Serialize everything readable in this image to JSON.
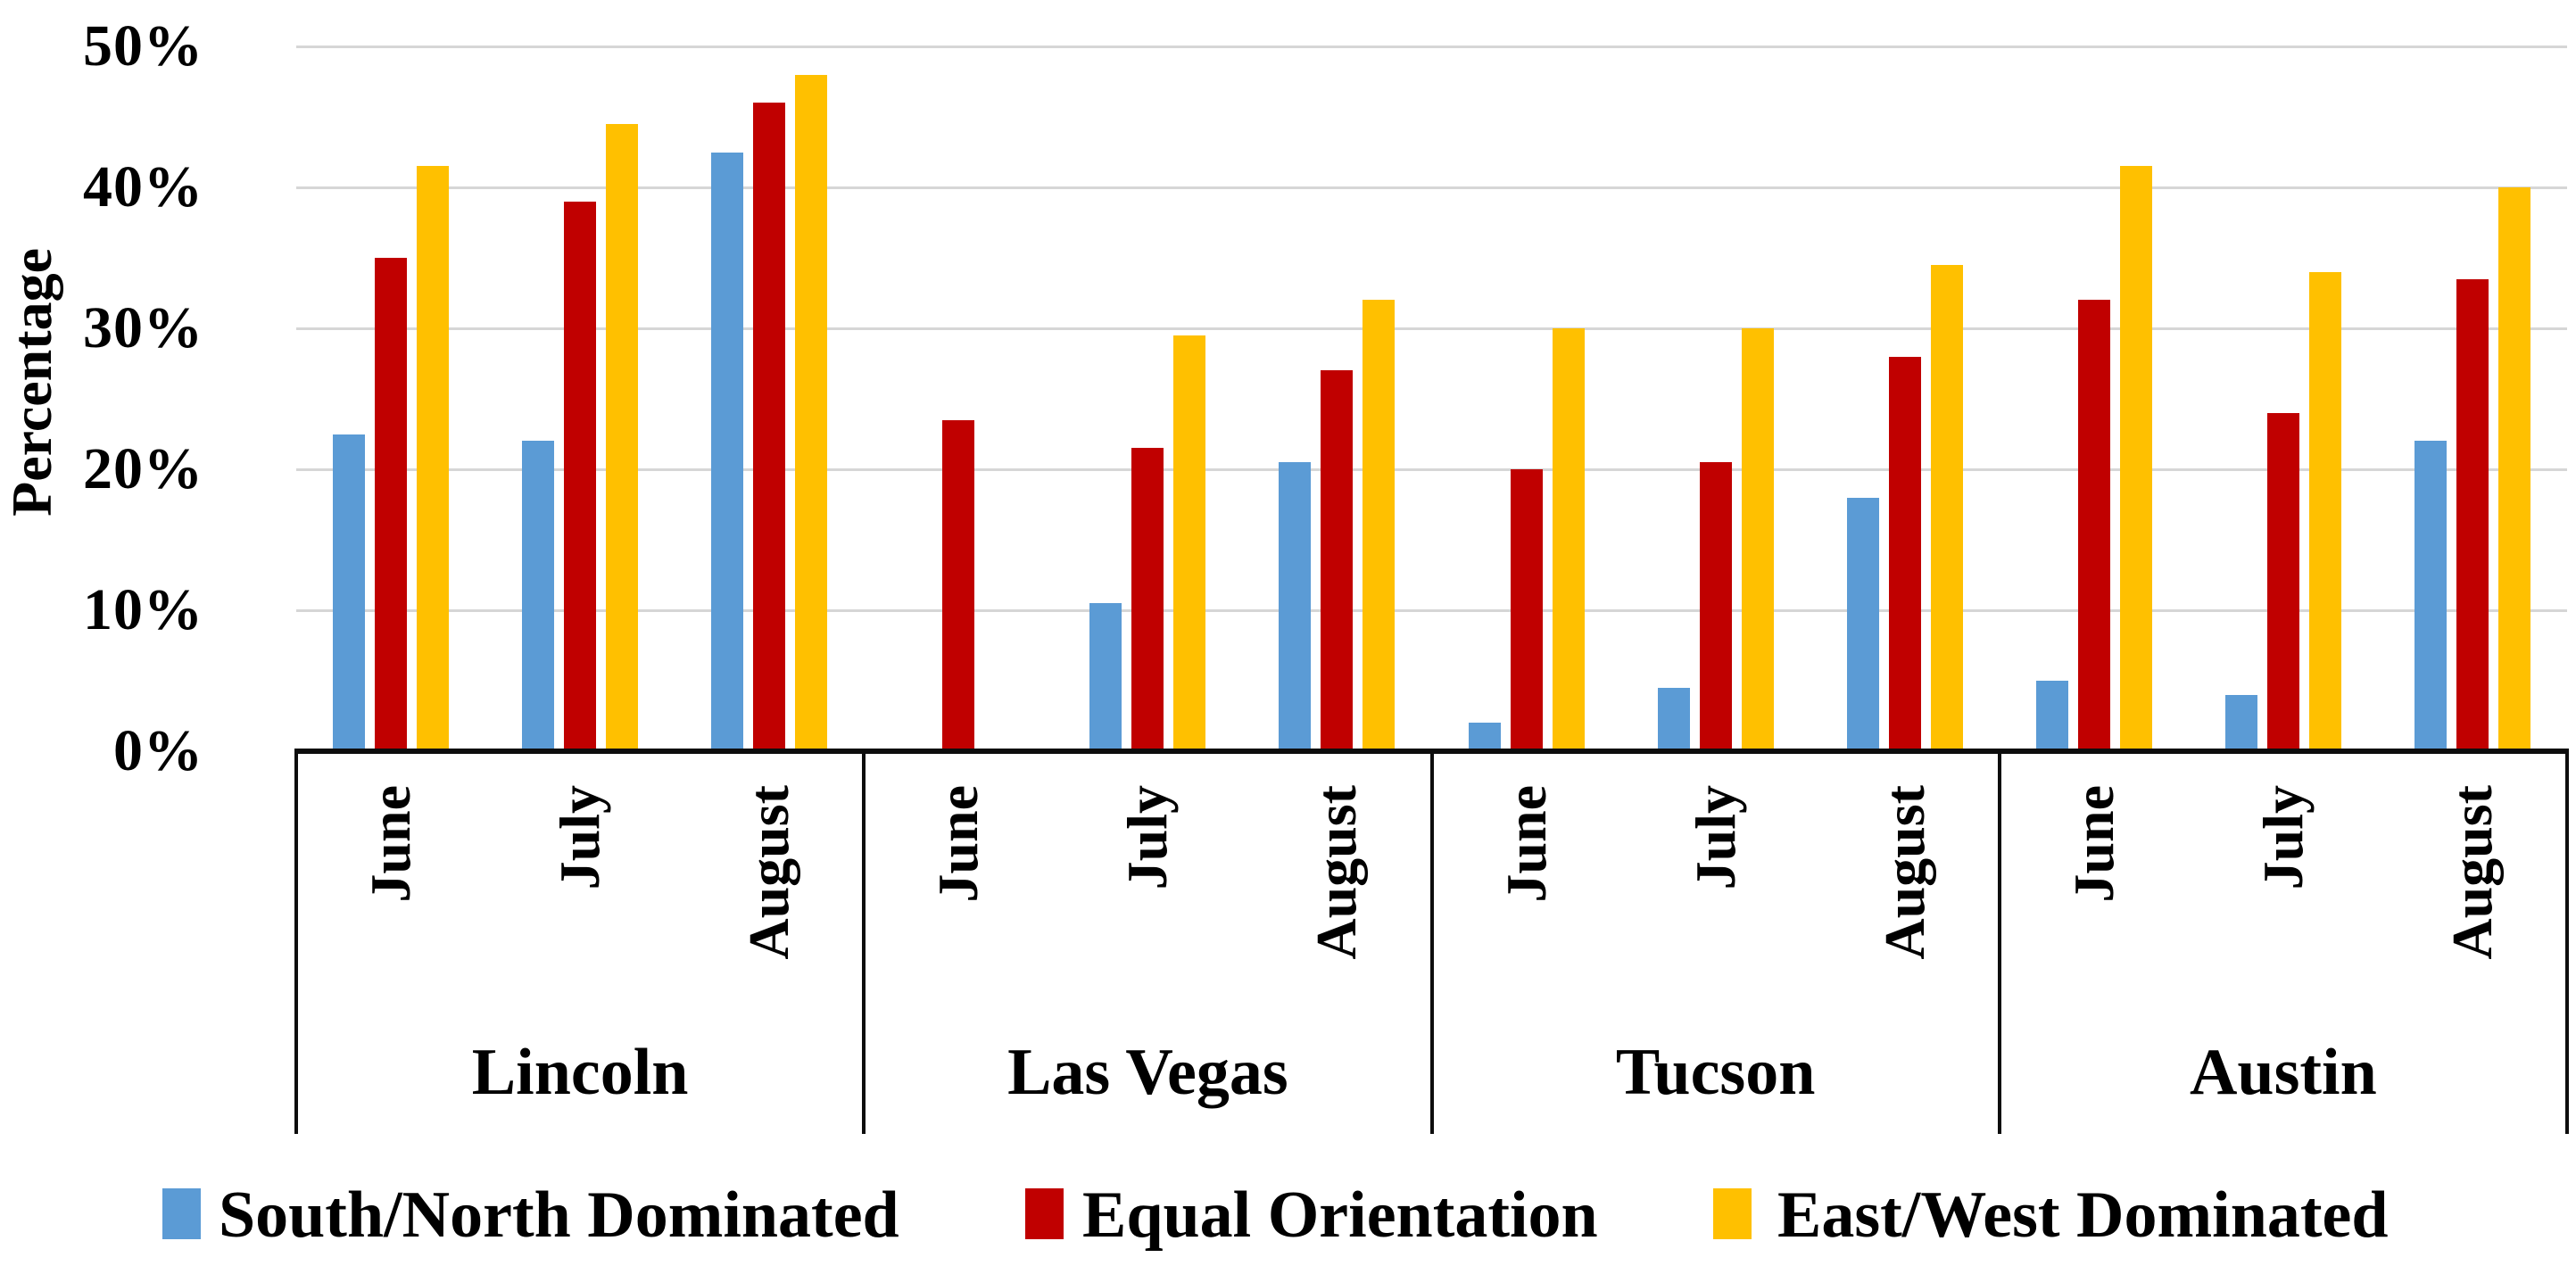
{
  "page": {
    "background": "#FFFFFF"
  },
  "chart_data": {
    "type": "bar",
    "title": "",
    "xlabel": "",
    "ylabel": "Percentage",
    "ylim": [
      0,
      50
    ],
    "ytick_labels": [
      "0%",
      "10%",
      "20%",
      "30%",
      "40%",
      "50%"
    ],
    "ytick_values": [
      0,
      10,
      20,
      30,
      40,
      50
    ],
    "grid": true,
    "gridline_color": "#D6D6D6",
    "axis_color": "#0D0D0D",
    "legend_position": "bottom",
    "group_categories": [
      "Lincoln",
      "Las Vegas",
      "Tucson",
      "Austin"
    ],
    "sub_categories": [
      "June",
      "July",
      "August"
    ],
    "series": [
      {
        "name": "South/North Dominated",
        "color": "#5B9BD5",
        "values": [
          [
            22.5,
            22,
            42.5
          ],
          [
            0,
            10.5,
            20.5
          ],
          [
            2,
            4.5,
            18
          ],
          [
            5,
            4,
            22
          ]
        ]
      },
      {
        "name": "Equal Orientation",
        "color": "#C00000",
        "values": [
          [
            35,
            39,
            46
          ],
          [
            23.5,
            21.5,
            27
          ],
          [
            20,
            20.5,
            28
          ],
          [
            32,
            24,
            33.5
          ]
        ]
      },
      {
        "name": "East/West Dominated",
        "color": "#FFC000",
        "values": [
          [
            41.5,
            44.5,
            48
          ],
          [
            0,
            29.5,
            32
          ],
          [
            30,
            30,
            34.5
          ],
          [
            41.5,
            34,
            40
          ]
        ]
      }
    ]
  }
}
